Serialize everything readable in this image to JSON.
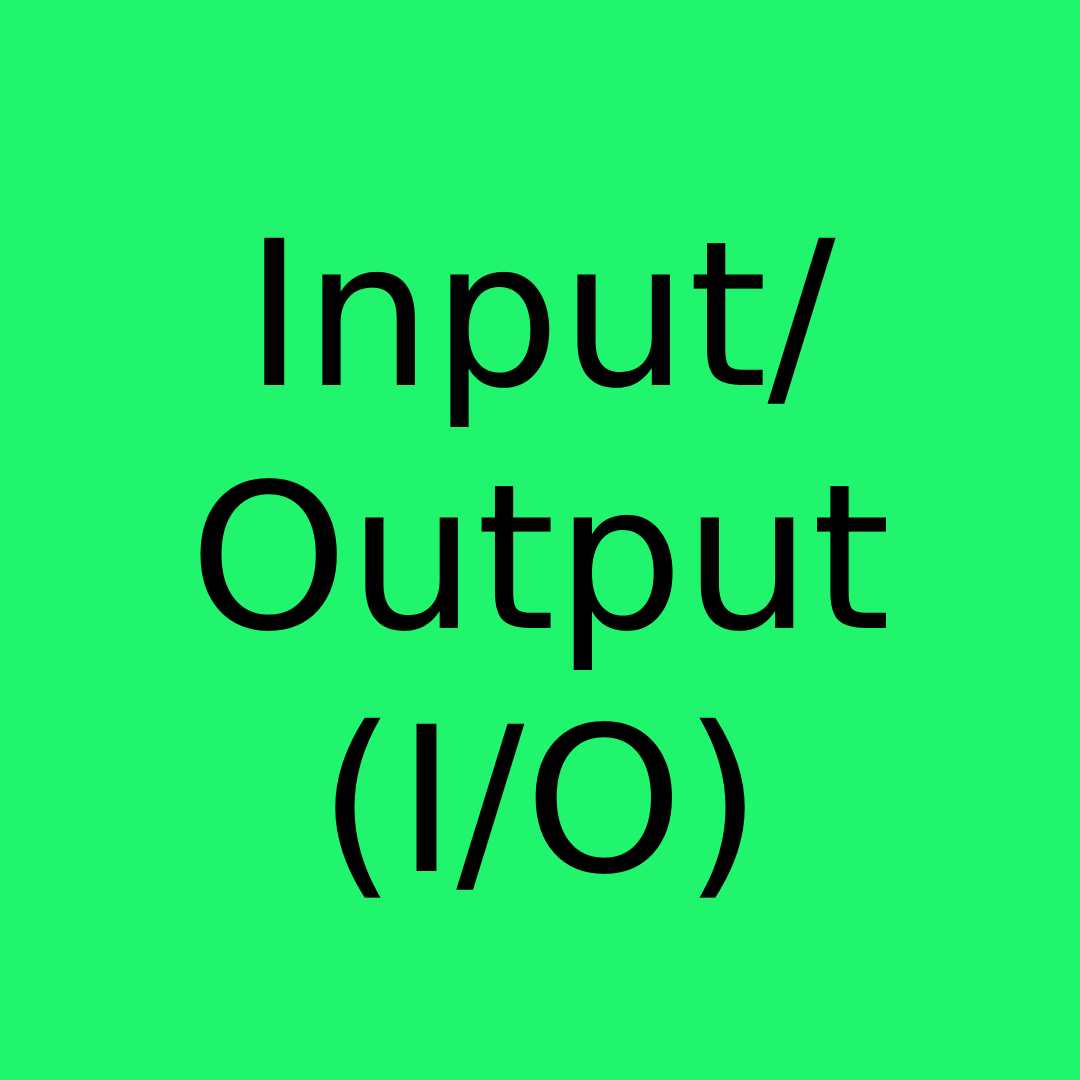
{
  "background_color": "#21F56E",
  "text_color": "#000000",
  "title": {
    "line1": "Input/",
    "line2": "Output",
    "line3": "(I/O)"
  }
}
